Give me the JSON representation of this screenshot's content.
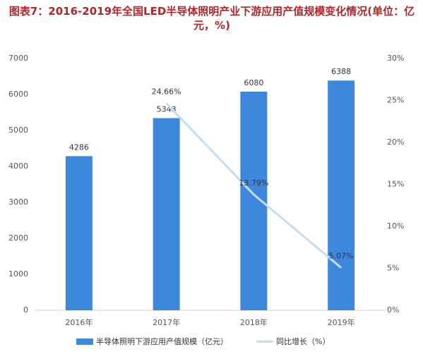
{
  "chart_data": {
    "type": "bar",
    "title": "图表7：2016-2019年全国LED半导体照明产业下游应用产值规模变化情况(单位：亿元，%)",
    "categories": [
      "2016年",
      "2017年",
      "2018年",
      "2019年"
    ],
    "series": [
      {
        "name": "半导体照明下游应用产值规模（亿元）",
        "type": "bar",
        "color": "#3d87dd",
        "values": [
          4286,
          5343,
          6080,
          6388
        ]
      },
      {
        "name": "同比增长（%）",
        "type": "line",
        "axis": "y2",
        "color": "#c5ddf0",
        "values": [
          null,
          24.66,
          13.79,
          5.07
        ],
        "value_labels": [
          null,
          "24.66%",
          "13.79%",
          "5.07%"
        ]
      }
    ],
    "ylim": [
      0,
      7000
    ],
    "yticks": [
      0,
      1000,
      2000,
      3000,
      4000,
      5000,
      6000,
      7000
    ],
    "y2lim": [
      0,
      30
    ],
    "y2ticks": [
      {
        "value": 0,
        "label": "0%"
      },
      {
        "value": 5,
        "label": "5%"
      },
      {
        "value": 10,
        "label": "10%"
      },
      {
        "value": 15,
        "label": "15%"
      },
      {
        "value": 20,
        "label": "20%"
      },
      {
        "value": 25,
        "label": "25%"
      },
      {
        "value": 30,
        "label": "30%"
      }
    ],
    "legend": "bottom"
  }
}
